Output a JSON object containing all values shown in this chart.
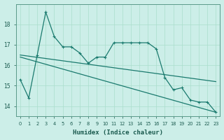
{
  "xlabel": "Humidex (Indice chaleur)",
  "ylabel": "",
  "background_color": "#cceee8",
  "grid_color": "#aaddcc",
  "line_color": "#1a7a6e",
  "xlim": [
    -0.5,
    23.5
  ],
  "ylim": [
    13.5,
    19.0
  ],
  "yticks": [
    14,
    15,
    16,
    17,
    18
  ],
  "xticks": [
    0,
    1,
    2,
    3,
    4,
    5,
    6,
    7,
    8,
    9,
    10,
    11,
    12,
    13,
    14,
    15,
    16,
    17,
    18,
    19,
    20,
    21,
    22,
    23
  ],
  "series1_x": [
    0,
    1,
    2,
    3,
    4,
    5,
    6,
    7,
    8,
    9,
    10,
    11,
    12,
    13,
    14,
    15,
    16,
    17,
    18,
    19,
    20,
    21,
    22,
    23
  ],
  "series1_y": [
    15.3,
    14.4,
    16.5,
    18.6,
    17.4,
    16.9,
    16.9,
    16.6,
    16.1,
    16.4,
    16.4,
    17.1,
    17.1,
    17.1,
    17.1,
    17.1,
    16.8,
    15.4,
    14.8,
    14.9,
    14.3,
    14.2,
    14.2,
    13.7
  ],
  "series2_x": [
    0,
    23
  ],
  "series2_y": [
    16.5,
    15.2
  ],
  "series3_x": [
    0,
    23
  ],
  "series3_y": [
    16.4,
    13.7
  ]
}
